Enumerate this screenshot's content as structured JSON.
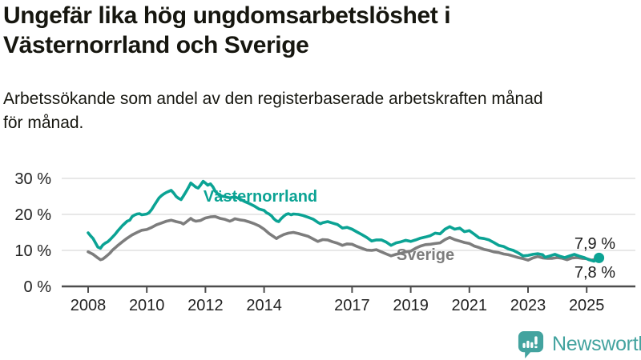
{
  "chart_data": {
    "type": "line",
    "title": "Ungefär lika hög ungdomsarbetslöshet i\nVästernorrland och Sverige",
    "subtitle": "Arbetssökande som andel av den registerbaserade arbetskraften månad\nför månad.",
    "unit": "%",
    "grid": "horizontal",
    "x_base": 2008,
    "xlim_years": [
      2007.1,
      2026.7
    ],
    "ylim": [
      0,
      33
    ],
    "y_ticks": [
      {
        "value": 0,
        "label": "0 %"
      },
      {
        "value": 10,
        "label": "10 %"
      },
      {
        "value": 20,
        "label": "20 %"
      },
      {
        "value": 30,
        "label": "30 %"
      }
    ],
    "x_ticks": [
      {
        "value": 2008,
        "label": "2008"
      },
      {
        "value": 2010,
        "label": "2010"
      },
      {
        "value": 2012,
        "label": "2012"
      },
      {
        "value": 2014,
        "label": "2014"
      },
      {
        "value": 2017,
        "label": "2017"
      },
      {
        "value": 2019,
        "label": "2019"
      },
      {
        "value": 2021,
        "label": "2021"
      },
      {
        "value": 2023,
        "label": "2023"
      },
      {
        "value": 2025,
        "label": "2025"
      }
    ],
    "series": [
      {
        "name": "Västernorrland",
        "color": "#0ba394",
        "end_label": "7,9 %",
        "end_value": 7.9,
        "end_dot": true,
        "points": [
          [
            2008.0,
            14.9
          ],
          [
            2008.08,
            14.1
          ],
          [
            2008.17,
            13.3
          ],
          [
            2008.25,
            12.1
          ],
          [
            2008.33,
            10.9
          ],
          [
            2008.42,
            10.6
          ],
          [
            2008.5,
            11.5
          ],
          [
            2008.58,
            12.0
          ],
          [
            2008.67,
            12.4
          ],
          [
            2008.75,
            13.0
          ],
          [
            2008.83,
            13.7
          ],
          [
            2008.92,
            14.5
          ],
          [
            2009.0,
            15.3
          ],
          [
            2009.17,
            16.9
          ],
          [
            2009.33,
            18.1
          ],
          [
            2009.42,
            18.4
          ],
          [
            2009.5,
            19.4
          ],
          [
            2009.58,
            19.8
          ],
          [
            2009.67,
            20.1
          ],
          [
            2009.75,
            20.2
          ],
          [
            2009.83,
            19.9
          ],
          [
            2009.92,
            20.0
          ],
          [
            2010.0,
            20.1
          ],
          [
            2010.08,
            20.5
          ],
          [
            2010.17,
            21.4
          ],
          [
            2010.25,
            22.5
          ],
          [
            2010.33,
            23.5
          ],
          [
            2010.42,
            24.6
          ],
          [
            2010.5,
            25.2
          ],
          [
            2010.58,
            25.7
          ],
          [
            2010.67,
            26.1
          ],
          [
            2010.75,
            26.4
          ],
          [
            2010.83,
            26.7
          ],
          [
            2010.92,
            25.9
          ],
          [
            2011.0,
            25.0
          ],
          [
            2011.08,
            24.5
          ],
          [
            2011.17,
            24.1
          ],
          [
            2011.25,
            25.1
          ],
          [
            2011.33,
            26.2
          ],
          [
            2011.42,
            27.5
          ],
          [
            2011.5,
            28.7
          ],
          [
            2011.58,
            28.2
          ],
          [
            2011.67,
            27.6
          ],
          [
            2011.75,
            27.3
          ],
          [
            2011.83,
            28.1
          ],
          [
            2011.92,
            29.2
          ],
          [
            2012.0,
            28.7
          ],
          [
            2012.08,
            28.1
          ],
          [
            2012.17,
            28.5
          ],
          [
            2012.25,
            27.7
          ],
          [
            2012.33,
            26.5
          ],
          [
            2012.42,
            25.7
          ],
          [
            2012.5,
            25.2
          ],
          [
            2012.67,
            24.9
          ],
          [
            2012.83,
            24.6
          ],
          [
            2013.0,
            24.9
          ],
          [
            2013.17,
            24.3
          ],
          [
            2013.33,
            23.6
          ],
          [
            2013.5,
            23.0
          ],
          [
            2013.67,
            22.3
          ],
          [
            2013.83,
            21.5
          ],
          [
            2014.0,
            21.1
          ],
          [
            2014.08,
            20.5
          ],
          [
            2014.17,
            20.1
          ],
          [
            2014.25,
            19.6
          ],
          [
            2014.33,
            18.8
          ],
          [
            2014.42,
            18.2
          ],
          [
            2014.5,
            18.0
          ],
          [
            2014.58,
            18.8
          ],
          [
            2014.67,
            19.5
          ],
          [
            2014.75,
            20.0
          ],
          [
            2014.83,
            20.2
          ],
          [
            2014.92,
            19.9
          ],
          [
            2015.0,
            20.1
          ],
          [
            2015.17,
            20.0
          ],
          [
            2015.33,
            19.7
          ],
          [
            2015.5,
            19.2
          ],
          [
            2015.67,
            18.7
          ],
          [
            2015.83,
            17.8
          ],
          [
            2015.92,
            17.4
          ],
          [
            2016.0,
            17.7
          ],
          [
            2016.17,
            18.0
          ],
          [
            2016.33,
            17.6
          ],
          [
            2016.5,
            17.2
          ],
          [
            2016.67,
            16.2
          ],
          [
            2016.83,
            16.4
          ],
          [
            2017.0,
            15.9
          ],
          [
            2017.17,
            15.1
          ],
          [
            2017.33,
            14.4
          ],
          [
            2017.5,
            13.6
          ],
          [
            2017.67,
            12.6
          ],
          [
            2017.83,
            12.9
          ],
          [
            2018.0,
            12.9
          ],
          [
            2018.17,
            12.3
          ],
          [
            2018.33,
            11.4
          ],
          [
            2018.5,
            12.1
          ],
          [
            2018.67,
            12.4
          ],
          [
            2018.83,
            12.8
          ],
          [
            2019.0,
            12.5
          ],
          [
            2019.17,
            12.9
          ],
          [
            2019.33,
            13.4
          ],
          [
            2019.5,
            13.7
          ],
          [
            2019.67,
            14.1
          ],
          [
            2019.83,
            14.8
          ],
          [
            2020.0,
            14.6
          ],
          [
            2020.17,
            15.9
          ],
          [
            2020.33,
            16.6
          ],
          [
            2020.5,
            15.9
          ],
          [
            2020.67,
            16.2
          ],
          [
            2020.83,
            15.2
          ],
          [
            2021.0,
            15.5
          ],
          [
            2021.17,
            14.5
          ],
          [
            2021.33,
            13.5
          ],
          [
            2021.5,
            13.3
          ],
          [
            2021.67,
            12.9
          ],
          [
            2021.83,
            12.2
          ],
          [
            2022.0,
            11.4
          ],
          [
            2022.17,
            11.1
          ],
          [
            2022.33,
            10.4
          ],
          [
            2022.5,
            10.0
          ],
          [
            2022.67,
            9.3
          ],
          [
            2022.83,
            8.5
          ],
          [
            2023.0,
            8.6
          ],
          [
            2023.17,
            8.9
          ],
          [
            2023.33,
            9.1
          ],
          [
            2023.5,
            8.8
          ],
          [
            2023.58,
            8.1
          ],
          [
            2023.75,
            8.5
          ],
          [
            2023.92,
            8.9
          ],
          [
            2024.08,
            8.4
          ],
          [
            2024.25,
            8.0
          ],
          [
            2024.42,
            8.5
          ],
          [
            2024.58,
            8.9
          ],
          [
            2024.75,
            8.4
          ],
          [
            2024.92,
            8.0
          ],
          [
            2025.08,
            7.4
          ],
          [
            2025.25,
            7.0
          ],
          [
            2025.42,
            7.9
          ]
        ]
      },
      {
        "name": "Sverige",
        "color": "#7d7d7d",
        "end_label": "7,8 %",
        "end_value": 7.8,
        "end_dot": false,
        "points": [
          [
            2008.0,
            9.6
          ],
          [
            2008.08,
            9.3
          ],
          [
            2008.17,
            8.9
          ],
          [
            2008.25,
            8.4
          ],
          [
            2008.33,
            7.9
          ],
          [
            2008.42,
            7.4
          ],
          [
            2008.5,
            7.6
          ],
          [
            2008.58,
            8.1
          ],
          [
            2008.67,
            8.7
          ],
          [
            2008.75,
            9.3
          ],
          [
            2008.83,
            10.1
          ],
          [
            2008.92,
            10.7
          ],
          [
            2009.0,
            11.3
          ],
          [
            2009.17,
            12.4
          ],
          [
            2009.33,
            13.4
          ],
          [
            2009.5,
            14.3
          ],
          [
            2009.67,
            15.0
          ],
          [
            2009.83,
            15.6
          ],
          [
            2010.0,
            15.8
          ],
          [
            2010.17,
            16.4
          ],
          [
            2010.33,
            17.1
          ],
          [
            2010.5,
            17.6
          ],
          [
            2010.67,
            18.1
          ],
          [
            2010.83,
            18.4
          ],
          [
            2010.92,
            18.2
          ],
          [
            2011.0,
            18.0
          ],
          [
            2011.17,
            17.7
          ],
          [
            2011.25,
            17.3
          ],
          [
            2011.33,
            17.8
          ],
          [
            2011.5,
            18.9
          ],
          [
            2011.58,
            18.4
          ],
          [
            2011.67,
            18.1
          ],
          [
            2011.83,
            18.3
          ],
          [
            2011.92,
            18.7
          ],
          [
            2012.0,
            19.0
          ],
          [
            2012.17,
            19.3
          ],
          [
            2012.33,
            19.4
          ],
          [
            2012.5,
            18.9
          ],
          [
            2012.67,
            18.6
          ],
          [
            2012.83,
            18.1
          ],
          [
            2012.92,
            18.4
          ],
          [
            2013.0,
            18.8
          ],
          [
            2013.17,
            18.5
          ],
          [
            2013.33,
            18.3
          ],
          [
            2013.5,
            17.9
          ],
          [
            2013.67,
            17.4
          ],
          [
            2013.83,
            16.8
          ],
          [
            2014.0,
            15.9
          ],
          [
            2014.17,
            14.7
          ],
          [
            2014.33,
            13.8
          ],
          [
            2014.42,
            13.3
          ],
          [
            2014.5,
            13.7
          ],
          [
            2014.67,
            14.4
          ],
          [
            2014.83,
            14.8
          ],
          [
            2015.0,
            15.0
          ],
          [
            2015.17,
            14.7
          ],
          [
            2015.33,
            14.3
          ],
          [
            2015.5,
            13.9
          ],
          [
            2015.67,
            13.2
          ],
          [
            2015.83,
            12.5
          ],
          [
            2016.0,
            13.0
          ],
          [
            2016.17,
            12.9
          ],
          [
            2016.33,
            12.4
          ],
          [
            2016.5,
            12.0
          ],
          [
            2016.67,
            11.4
          ],
          [
            2016.83,
            11.8
          ],
          [
            2017.0,
            11.7
          ],
          [
            2017.17,
            11.1
          ],
          [
            2017.33,
            10.6
          ],
          [
            2017.5,
            10.1
          ],
          [
            2017.67,
            10.0
          ],
          [
            2017.83,
            10.2
          ],
          [
            2018.0,
            9.6
          ],
          [
            2018.17,
            9.0
          ],
          [
            2018.33,
            8.5
          ],
          [
            2018.5,
            8.9
          ],
          [
            2018.67,
            9.2
          ],
          [
            2018.83,
            9.6
          ],
          [
            2019.0,
            9.8
          ],
          [
            2019.17,
            10.6
          ],
          [
            2019.33,
            11.2
          ],
          [
            2019.5,
            11.6
          ],
          [
            2019.67,
            11.7
          ],
          [
            2019.83,
            11.9
          ],
          [
            2020.0,
            12.1
          ],
          [
            2020.17,
            13.0
          ],
          [
            2020.33,
            13.6
          ],
          [
            2020.5,
            13.0
          ],
          [
            2020.67,
            12.6
          ],
          [
            2020.83,
            12.2
          ],
          [
            2021.0,
            11.9
          ],
          [
            2021.17,
            11.2
          ],
          [
            2021.33,
            10.8
          ],
          [
            2021.5,
            10.3
          ],
          [
            2021.67,
            10.0
          ],
          [
            2021.83,
            9.6
          ],
          [
            2022.0,
            9.4
          ],
          [
            2022.17,
            9.0
          ],
          [
            2022.33,
            8.8
          ],
          [
            2022.5,
            8.4
          ],
          [
            2022.67,
            8.0
          ],
          [
            2022.83,
            7.7
          ],
          [
            2023.0,
            7.3
          ],
          [
            2023.17,
            7.9
          ],
          [
            2023.33,
            8.3
          ],
          [
            2023.5,
            7.9
          ],
          [
            2023.67,
            7.8
          ],
          [
            2023.83,
            7.8
          ],
          [
            2024.0,
            8.0
          ],
          [
            2024.17,
            7.8
          ],
          [
            2024.33,
            7.4
          ],
          [
            2024.5,
            7.9
          ],
          [
            2024.67,
            8.0
          ],
          [
            2024.83,
            7.8
          ],
          [
            2025.0,
            7.7
          ],
          [
            2025.17,
            7.3
          ],
          [
            2025.42,
            7.8
          ]
        ]
      }
    ]
  },
  "footer": {
    "brand": "Newsworthy",
    "brand_color": "#43a39f",
    "logo_icon": "bar-chart-speech-bubble"
  }
}
